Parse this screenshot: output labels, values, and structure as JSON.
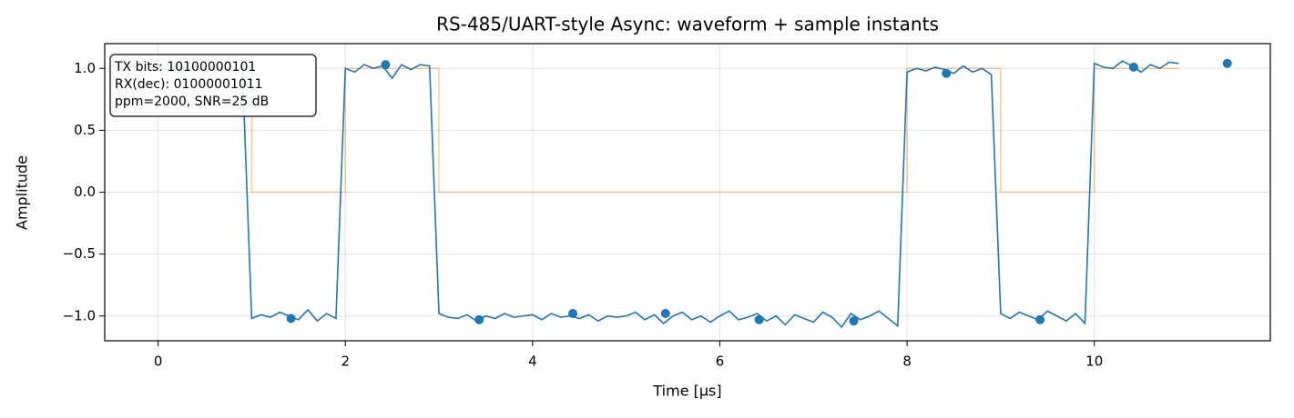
{
  "chart_data": {
    "type": "line",
    "title": "RS-485/UART-style Async: waveform + sample instants",
    "x_label": "Time [µs]",
    "y_label": "Amplitude",
    "xlim": [
      -0.57,
      11.88
    ],
    "ylim": [
      -1.2,
      1.2
    ],
    "xticks": [
      0,
      2,
      4,
      6,
      8,
      10
    ],
    "yticks": [
      {
        "value": -1,
        "label": "−1.0"
      },
      {
        "value": -0.5,
        "label": "−0.5"
      },
      {
        "value": 0,
        "label": "0.0"
      },
      {
        "value": 0.5,
        "label": "0.5"
      },
      {
        "value": 1,
        "label": "1.0"
      }
    ],
    "grid": true,
    "annotation": [
      "TX bits: 10100000101",
      "RX(dec): 01000001011",
      "ppm=2000, SNR=25 dB"
    ],
    "series": [
      {
        "type": "line",
        "color": "#ff7f0e",
        "opacity": 0.4,
        "x": [
          0,
          1,
          1,
          2,
          2,
          3,
          3,
          8,
          8,
          9,
          9,
          10,
          10,
          10.9
        ],
        "values": [
          1,
          1,
          0,
          0,
          1,
          1,
          0,
          0,
          1,
          1,
          0,
          0,
          1,
          1
        ]
      },
      {
        "type": "line",
        "color": "#1f77b4",
        "opacity": 1,
        "x": [
          0,
          0.1,
          0.2,
          0.3,
          0.4,
          0.5,
          0.6,
          0.7,
          0.8,
          0.9,
          1,
          1.1,
          1.2,
          1.3,
          1.4,
          1.5,
          1.6,
          1.7,
          1.8,
          1.9,
          2,
          2.1,
          2.2,
          2.3,
          2.4,
          2.5,
          2.6,
          2.7,
          2.8,
          2.9,
          3,
          3.1,
          3.2,
          3.3,
          3.4,
          3.5,
          3.6,
          3.7,
          3.8,
          3.9,
          4,
          4.1,
          4.2,
          4.3,
          4.4,
          4.5,
          4.6,
          4.7,
          4.8,
          4.9,
          5,
          5.1,
          5.2,
          5.3,
          5.4,
          5.5,
          5.6,
          5.7,
          5.8,
          5.9,
          6,
          6.1,
          6.2,
          6.3,
          6.4,
          6.5,
          6.6,
          6.7,
          6.8,
          6.9,
          7,
          7.1,
          7.2,
          7.3,
          7.4,
          7.5,
          7.6,
          7.7,
          7.8,
          7.9,
          8,
          8.1,
          8.2,
          8.3,
          8.4,
          8.5,
          8.6,
          8.7,
          8.8,
          8.9,
          9,
          9.1,
          9.2,
          9.3,
          9.4,
          9.5,
          9.6,
          9.7,
          9.8,
          9.9,
          10,
          10.1,
          10.2,
          10.3,
          10.4,
          10.5,
          10.6,
          10.7,
          10.8,
          10.9
        ],
        "values": [
          1.02,
          0.98,
          1.03,
          0.99,
          1.01,
          0.97,
          1.02,
          1.0,
          0.98,
          1.01,
          -1.02,
          -0.99,
          -1.01,
          -0.97,
          -1.0,
          -1.03,
          -0.95,
          -1.04,
          -0.98,
          -1.02,
          1.0,
          0.97,
          1.03,
          1.0,
          1.02,
          0.92,
          1.03,
          0.99,
          1.03,
          1.02,
          -0.98,
          -1.01,
          -1.02,
          -0.99,
          -1.04,
          -1.0,
          -1.02,
          -0.98,
          -1.01,
          -1.0,
          -0.99,
          -1.03,
          -0.98,
          -1.01,
          -1.0,
          -1.02,
          -0.99,
          -1.04,
          -1.0,
          -1.01,
          -1.0,
          -0.97,
          -1.03,
          -0.99,
          -1.06,
          -1.0,
          -0.97,
          -1.03,
          -1.0,
          -1.05,
          -1.0,
          -0.96,
          -1.03,
          -1.01,
          -0.98,
          -1.04,
          -1.0,
          -1.07,
          -0.99,
          -1.02,
          -1.05,
          -0.97,
          -1.01,
          -1.09,
          -0.98,
          -1.03,
          -1.0,
          -0.96,
          -1.02,
          -1.08,
          0.97,
          1.0,
          0.98,
          1.01,
          0.99,
          0.96,
          1.02,
          0.97,
          1.0,
          0.95,
          -0.98,
          -1.02,
          -0.97,
          -1.0,
          -1.03,
          -0.96,
          -1.0,
          -1.04,
          -0.98,
          -1.06,
          1.04,
          1.01,
          1.0,
          1.06,
          1.02,
          0.97,
          1.03,
          1.0,
          1.05,
          1.04
        ]
      },
      {
        "type": "scatter",
        "color": "#1f77b4",
        "opacity": 1,
        "x": [
          1.42,
          2.43,
          3.43,
          4.43,
          5.42,
          6.42,
          7.43,
          8.42,
          9.42,
          10.42,
          11.42
        ],
        "values": [
          -1.02,
          1.03,
          -1.03,
          -0.98,
          -0.98,
          -1.03,
          -1.04,
          0.96,
          -1.03,
          1.01,
          1.04
        ]
      }
    ]
  }
}
